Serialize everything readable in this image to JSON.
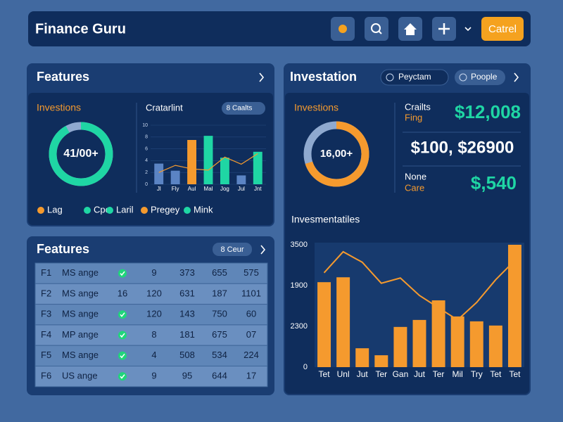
{
  "header": {
    "title": "Finance Guru",
    "button": "Catrel"
  },
  "features_panel": {
    "title": "Features",
    "donut": {
      "title": "Investions",
      "label": "41/00+",
      "value": 92,
      "color": "#1fd6a4"
    },
    "legend": [
      {
        "name": "Lag",
        "color": "#f59a2e"
      },
      {
        "name": "Cpe",
        "color": "#1fd6a4"
      },
      {
        "name": "Laril",
        "color": "#1fd6a4"
      },
      {
        "name": "Pregey",
        "color": "#f59a2e"
      },
      {
        "name": "Mink",
        "color": "#1fd6a4"
      }
    ],
    "chart_data": {
      "type": "bar",
      "title": "Cratarlint",
      "button": "8 Caalts",
      "categories": [
        "Jl",
        "Fly",
        "Aul",
        "Mal",
        "Jog",
        "Jul",
        "Jnt"
      ],
      "values": [
        3.5,
        2.3,
        7.5,
        8.2,
        4.5,
        1.5,
        5.5
      ],
      "colors": [
        "#5b84c4",
        "#5b84c4",
        "#f59a2e",
        "#1fd6a4",
        "#1fd6a4",
        "#5b84c4",
        "#1fd6a4"
      ],
      "line_values": [
        2,
        3.2,
        2.6,
        2.4,
        4.6,
        3.4,
        5.2
      ],
      "line_color": "#f59a2e",
      "ylim": [
        0,
        10
      ],
      "yticks": [
        0,
        2,
        4,
        6,
        8,
        10
      ]
    }
  },
  "table_panel": {
    "title": "Features",
    "button": "8 Ceur",
    "rows": [
      [
        "F1",
        "MS ange",
        null,
        "9",
        "373",
        "655",
        "575"
      ],
      [
        "F2",
        "MS ange",
        "16",
        "120",
        "631",
        "187",
        "1101"
      ],
      [
        "F3",
        "MS ange",
        null,
        "120",
        "143",
        "750",
        "60"
      ],
      [
        "F4",
        "MP ange",
        null,
        "8",
        "181",
        "675",
        "07"
      ],
      [
        "F5",
        "MS ange",
        null,
        "4",
        "508",
        "534",
        "224"
      ],
      [
        "F6",
        "US ange",
        null,
        "9",
        "95",
        "644",
        "17"
      ]
    ]
  },
  "investation_panel": {
    "title": "Investation",
    "tabs": [
      "Peyctam",
      "Poople"
    ],
    "donut": {
      "title": "Investions",
      "label": "16,00+",
      "value": 70,
      "color": "#f59a2e"
    },
    "stats": [
      {
        "label": "Crailts",
        "sublabel": "Fing",
        "value": "$12,008"
      },
      {
        "value": "$100, $26900"
      },
      {
        "label": "None",
        "sublabel": "Care",
        "value": "$,540"
      }
    ],
    "chart_data": {
      "type": "bar",
      "title": "Invesmentatiles",
      "categories": [
        "Tet",
        "Unl",
        "Jut",
        "Ter",
        "Gan",
        "Jut",
        "Ter",
        "Mil",
        "Try",
        "Tet",
        "Tet"
      ],
      "values": [
        2430,
        2570,
        540,
        340,
        1150,
        1350,
        1910,
        1450,
        1310,
        1190,
        3500
      ],
      "color": "#f59a2e",
      "line_values": [
        2700,
        3300,
        3000,
        2400,
        2550,
        2050,
        1700,
        1350,
        1850,
        2500,
        3050
      ],
      "line_color": "#f59a2e",
      "ylim": [
        0,
        3500
      ],
      "y_labels": [
        "3500",
        "1900",
        "2300",
        "0"
      ]
    }
  }
}
